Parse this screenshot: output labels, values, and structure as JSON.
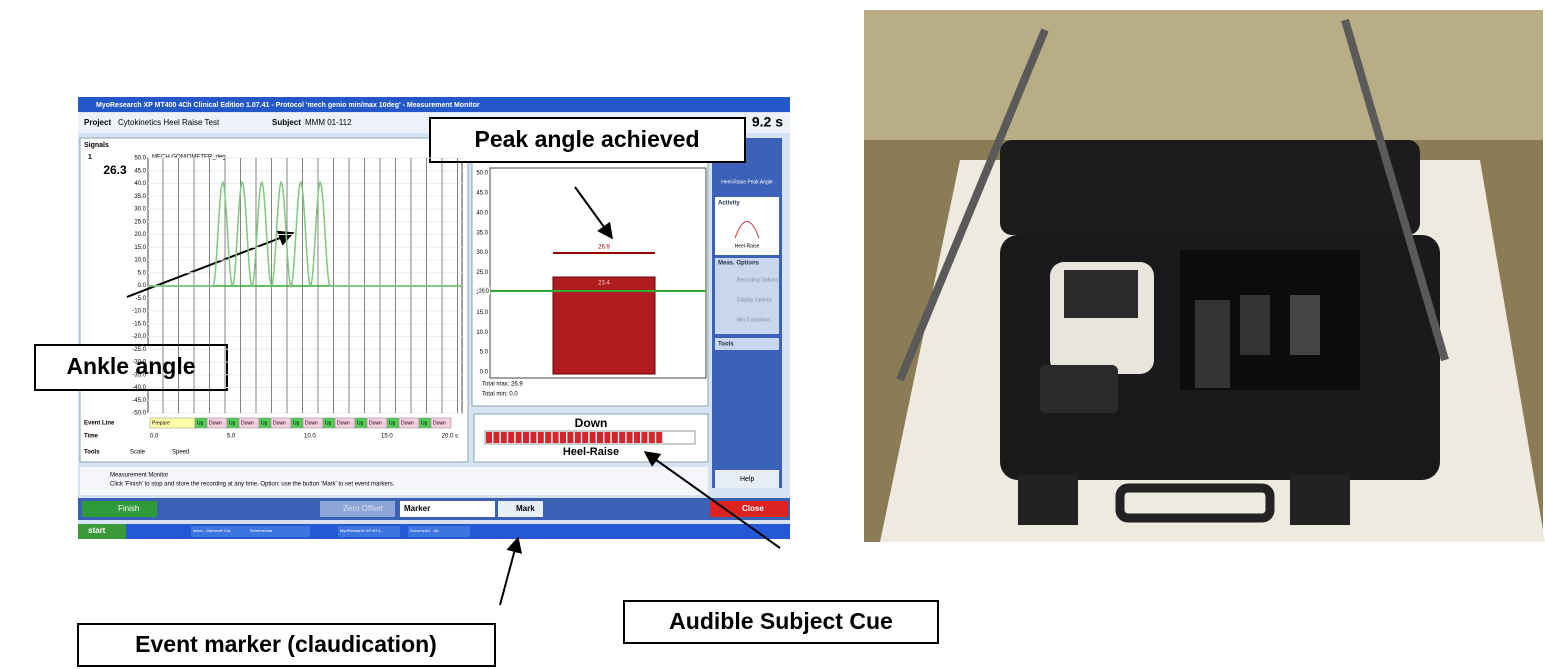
{
  "window": {
    "title": "MyoResearch XP MT400 4Ch Clinical Edition 1.07.41 - Protocol 'mech genio min/max 10deg' - Measurement Monitor",
    "project_label": "Project",
    "project": "Cytokinetics Heel Raise Test",
    "subject_label": "Subject",
    "subject": "MMM 01-112",
    "elapsed": "9.2 s"
  },
  "signals": {
    "title": "Signals",
    "channel": "1",
    "current": "26.3",
    "channel_name": "MECH GONIOMETER_deg",
    "y_labels": [
      "50.0",
      "45.0",
      "40.0",
      "35.0",
      "30.0",
      "25.0",
      "20.0",
      "15.0",
      "10.0",
      "5.0",
      "0.0",
      "-5.0",
      "-10.0",
      "-15.0",
      "-20.0",
      "-25.0",
      "-30.0",
      "-35.0",
      "-40.0",
      "-45.0",
      "-50.0"
    ],
    "event_label": "Event Line",
    "events": [
      "Prepare",
      "Up",
      "Down",
      "Up",
      "Down",
      "Up",
      "Down",
      "Up",
      "Down",
      "Up",
      "Down",
      "Up",
      "Down",
      "Up",
      "Down",
      "Up",
      "Down"
    ],
    "time_label": "Time",
    "time_labels": [
      "0.0",
      "5.0",
      "10.0",
      "15.0",
      "20.0 s"
    ],
    "tools": "Tools",
    "scale": "Scale",
    "speed": "Speed"
  },
  "bar_panel": {
    "y_labels": [
      "50.0",
      "45.0",
      "40.0",
      "35.0",
      "30.0",
      "25.0",
      "20.0",
      "15.0",
      "10.0",
      "5.0",
      "0.0"
    ],
    "peak": "26.9",
    "value": "23.4",
    "threshold": "20.0",
    "total_max": "Total max: 26.9",
    "total_min": "Total min: 0.0"
  },
  "cue": {
    "state": "Down",
    "activity": "Heel-Raise"
  },
  "sidebar": {
    "protocol": "Heel-Raise Peak Angle",
    "activity_title": "Activity",
    "activity": "Heel-Raise",
    "options_title": "Meas. Options",
    "options": [
      "Recording Options",
      "Display Options",
      "Min Transitions"
    ],
    "tools": "Tools",
    "help": "Help"
  },
  "message": {
    "title": "Measurement Monitor",
    "text": "Click 'Finish' to stop and store the recording at any time. Option: use the button 'Mark' to set event markers."
  },
  "buttons": {
    "finish": "Finish",
    "zero": "Zero Offset",
    "marker": "Marker",
    "mark": "Mark",
    "close": "Close"
  },
  "taskbar": {
    "start": "start",
    "items": [
      "Inbox - Microsoft Out...",
      "Screenshots",
      "MyoResearch XP MT4...",
      "Document1 - Mi..."
    ]
  },
  "callouts": {
    "peak": "Peak angle achieved",
    "ankle": "Ankle angle",
    "event": "Event marker (claudication)",
    "cue": "Audible Subject Cue"
  }
}
